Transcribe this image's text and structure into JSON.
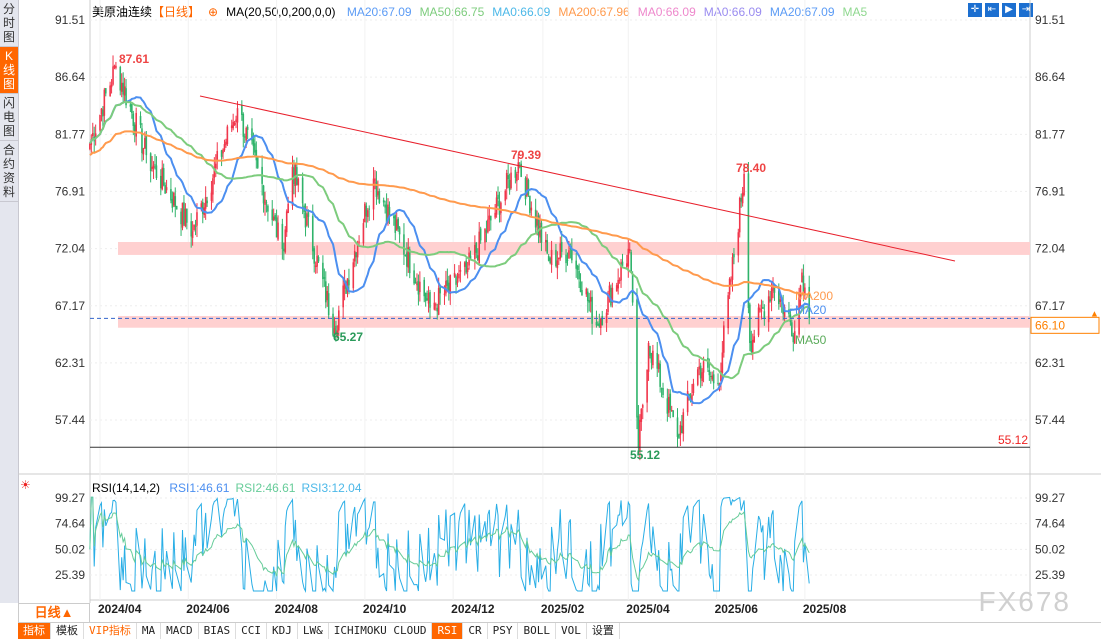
{
  "sidebar": {
    "items": [
      {
        "label": "分时图"
      },
      {
        "label": "K线图",
        "active": true
      },
      {
        "label": "闪电图"
      },
      {
        "label": "合约资料"
      }
    ]
  },
  "header": {
    "title": "美原油连续",
    "period": "【日线】",
    "ma_label": "MA(20,50,0,200,0,0)",
    "ma_values": [
      {
        "text": "MA20:67.09",
        "color": "#5b9bf5"
      },
      {
        "text": "MA50:66.75",
        "color": "#7dcc7d"
      },
      {
        "text": "MA0:66.09",
        "color": "#4cb8e8"
      },
      {
        "text": "MA200:67.96",
        "color": "#ff9a4d"
      },
      {
        "text": "MA0:66.09",
        "color": "#ee88cc"
      },
      {
        "text": "MA0:66.09",
        "color": "#9a8cf0"
      },
      {
        "text": "MA20:67.09",
        "color": "#5b9bf5"
      },
      {
        "text": "MA5",
        "color": "#8fd88f"
      }
    ],
    "tools": [
      "crosshair-icon",
      "zoom-range-icon",
      "play-icon",
      "exit-icon"
    ]
  },
  "rsi_header": {
    "label": "RSI(14,14,2)",
    "values": [
      {
        "text": "RSI1:46.61",
        "color": "#4c8ff0"
      },
      {
        "text": "RSI2:46.61",
        "color": "#66cc99"
      },
      {
        "text": "RSI3:12.04",
        "color": "#4cb8e8"
      }
    ]
  },
  "chart_data": {
    "type": "candlestick",
    "y_ticks": [
      "91.51",
      "86.64",
      "81.77",
      "76.91",
      "72.04",
      "67.17",
      "62.31",
      "57.44"
    ],
    "ylim": [
      55,
      91.51
    ],
    "x_ticks": [
      "2024/04",
      "2024/06",
      "2024/08",
      "2024/10",
      "2024/12",
      "2025/02",
      "2025/04",
      "2025/06",
      "2025/08"
    ],
    "annotations": {
      "high1": "87.61",
      "low1": "65.27",
      "high2": "79.39",
      "high3": "78.40",
      "low2": "55.12",
      "last": "66.10",
      "support_line": "55.12"
    },
    "close_path": [
      [
        "2024/03/25",
        81
      ],
      [
        "2024/04/12",
        87.61
      ],
      [
        "2024/05/03",
        80
      ],
      [
        "2024/06/04",
        73.5
      ],
      [
        "2024/07/05",
        84
      ],
      [
        "2024/08/05",
        72
      ],
      [
        "2024/08/12",
        79
      ],
      [
        "2024/09/10",
        65.27
      ],
      [
        "2024/10/07",
        78
      ],
      [
        "2024/11/15",
        67
      ],
      [
        "2024/12/10",
        70
      ],
      [
        "2025/01/15",
        79.39
      ],
      [
        "2025/02/05",
        71
      ],
      [
        "2025/02/20",
        72
      ],
      [
        "2025/03/10",
        65.5
      ],
      [
        "2025/04/02",
        72
      ],
      [
        "2025/04/08",
        55.12
      ],
      [
        "2025/04/15",
        64
      ],
      [
        "2025/05/05",
        56
      ],
      [
        "2025/05/20",
        62
      ],
      [
        "2025/06/02",
        60.5
      ],
      [
        "2025/06/20",
        78.4
      ],
      [
        "2025/06/24",
        64
      ],
      [
        "2025/07/10",
        69
      ],
      [
        "2025/07/25",
        65
      ],
      [
        "2025/07/30",
        70
      ],
      [
        "2025/08/04",
        66.1
      ]
    ],
    "ma_labels": [
      "MA200",
      "MA20",
      "MA50"
    ],
    "rsi_ticks": [
      "99.27",
      "74.64",
      "50.02",
      "25.39"
    ],
    "colors": {
      "up": "#f0364b",
      "down": "#2fb36a",
      "ma20": "#4c8ff0",
      "ma50": "#7dcc7d",
      "ma200": "#ff9a4d",
      "band": "#ffd0d0",
      "trend": "#e8202c"
    }
  },
  "footer": {
    "period_button": "日线▲",
    "tabs": [
      "指标",
      "模板",
      "VIP指标",
      "MA",
      "MACD",
      "BIAS",
      "CCI",
      "KDJ",
      "LW&",
      "ICHIMOKU CLOUD",
      "RSI",
      "CR",
      "PSY",
      "BOLL",
      "VOL",
      "设置"
    ],
    "active_tab": "RSI",
    "watermark": "FX678"
  }
}
